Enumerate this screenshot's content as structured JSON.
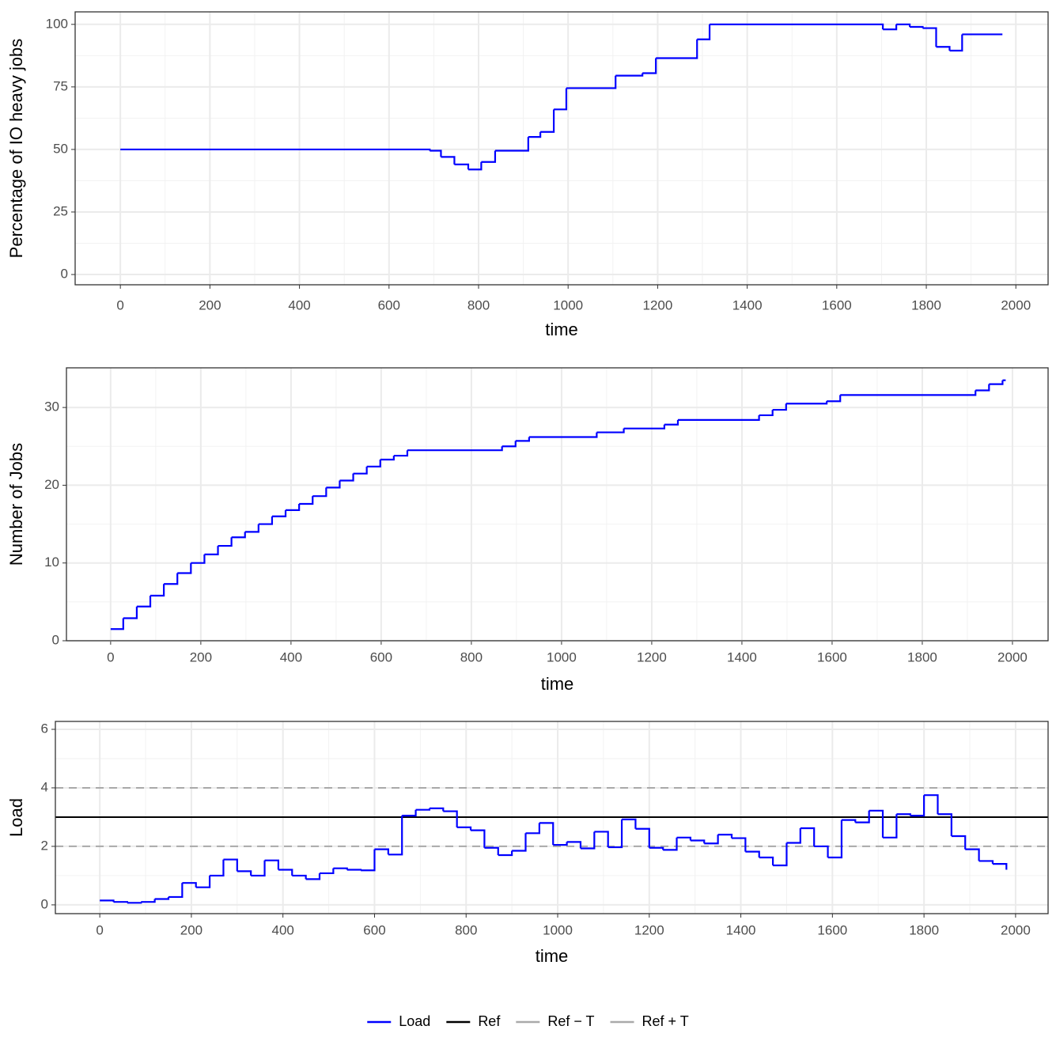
{
  "chart_data": [
    {
      "type": "step",
      "x_label": "time",
      "y_label": "Percentage of IO heavy jobs",
      "color": "#0000ff",
      "x": [
        0,
        691,
        716,
        746,
        777,
        806,
        837,
        911,
        938,
        968,
        996,
        1106,
        1166,
        1196,
        1288,
        1316,
        1703,
        1733,
        1763,
        1792,
        1822,
        1852,
        1880,
        1970
      ],
      "values": [
        50,
        49.5,
        47,
        44,
        42,
        45,
        49.5,
        55,
        57,
        66,
        74.5,
        79.5,
        80.5,
        86.5,
        94,
        100,
        98,
        100,
        99,
        98.5,
        91,
        89.5,
        96,
        96
      ],
      "xlim": [
        -101,
        2072
      ],
      "xticks": [
        0,
        200,
        400,
        600,
        800,
        1000,
        1200,
        1400,
        1600,
        1800,
        2000
      ],
      "ylim": [
        -4.1,
        105
      ],
      "yticks": [
        0,
        25,
        50,
        75,
        100
      ],
      "grid": true
    },
    {
      "type": "step",
      "x_label": "time",
      "y_label": "Number of Jobs",
      "color": "#0000ff",
      "x": [
        0,
        28,
        58,
        88,
        118,
        148,
        178,
        208,
        238,
        268,
        298,
        328,
        358,
        388,
        418,
        448,
        478,
        508,
        538,
        568,
        598,
        628,
        658,
        868,
        898,
        928,
        1078,
        1138,
        1228,
        1258,
        1438,
        1468,
        1498,
        1588,
        1618,
        1918,
        1948,
        1978,
        1985
      ],
      "values": [
        1.5,
        2.9,
        4.4,
        5.8,
        7.3,
        8.7,
        10.0,
        11.1,
        12.2,
        13.3,
        14.0,
        15.0,
        16.0,
        16.8,
        17.6,
        18.6,
        19.7,
        20.6,
        21.5,
        22.4,
        23.3,
        23.8,
        24.5,
        25.0,
        25.7,
        26.2,
        26.8,
        27.3,
        27.8,
        28.4,
        29.0,
        29.7,
        30.5,
        30.8,
        31.6,
        32.2,
        33.0,
        33.5,
        33.5
      ],
      "xlim": [
        -98,
        2079
      ],
      "xticks": [
        0,
        200,
        400,
        600,
        800,
        1000,
        1200,
        1400,
        1600,
        1800,
        2000
      ],
      "ylim": [
        0,
        35.1
      ],
      "yticks": [
        0,
        10,
        20,
        30
      ],
      "grid": true
    },
    {
      "type": "step",
      "x_label": "time",
      "y_label": "Load",
      "x": [
        0,
        30,
        60,
        90,
        120,
        150,
        180,
        210,
        240,
        270,
        300,
        330,
        360,
        390,
        420,
        450,
        480,
        510,
        540,
        570,
        600,
        630,
        660,
        690,
        720,
        750,
        780,
        810,
        840,
        870,
        900,
        930,
        960,
        990,
        1020,
        1050,
        1080,
        1110,
        1140,
        1170,
        1200,
        1230,
        1260,
        1290,
        1320,
        1350,
        1380,
        1410,
        1440,
        1470,
        1500,
        1530,
        1560,
        1590,
        1620,
        1650,
        1680,
        1710,
        1740,
        1770,
        1800,
        1830,
        1860,
        1890,
        1920,
        1950,
        1980
      ],
      "series": [
        {
          "name": "Load",
          "color": "#0000ff",
          "values": [
            0.15,
            0.1,
            0.07,
            0.1,
            0.2,
            0.27,
            0.75,
            0.6,
            1.0,
            1.55,
            1.15,
            1.0,
            1.52,
            1.2,
            1.0,
            0.88,
            1.08,
            1.25,
            1.2,
            1.18,
            1.9,
            1.72,
            3.05,
            3.25,
            3.3,
            3.2,
            2.65,
            2.55,
            1.95,
            1.7,
            1.85,
            2.45,
            2.8,
            2.05,
            2.15,
            1.93,
            2.5,
            1.97,
            2.92,
            2.6,
            1.95,
            1.88,
            2.3,
            2.2,
            2.1,
            2.4,
            2.28,
            1.82,
            1.62,
            1.35,
            2.12,
            2.62,
            2.0,
            1.62,
            2.9,
            2.82,
            3.22,
            2.3,
            3.1,
            3.05,
            3.75,
            3.1,
            2.35,
            1.9,
            1.5,
            1.4,
            1.2
          ]
        }
      ],
      "hlines": [
        {
          "name": "Ref",
          "value": 3,
          "color": "#000000",
          "dashed": false
        },
        {
          "name": "Ref − T",
          "value": 2,
          "color": "#a9a9a9",
          "dashed": true
        },
        {
          "name": "Ref + T",
          "value": 4,
          "color": "#a9a9a9",
          "dashed": true
        }
      ],
      "xlim": [
        -97,
        2071
      ],
      "xticks": [
        0,
        200,
        400,
        600,
        800,
        1000,
        1200,
        1400,
        1600,
        1800,
        2000
      ],
      "ylim": [
        -0.3,
        6.27
      ],
      "yticks": [
        0,
        2,
        4,
        6
      ],
      "grid": true,
      "legend": "bottom"
    }
  ]
}
